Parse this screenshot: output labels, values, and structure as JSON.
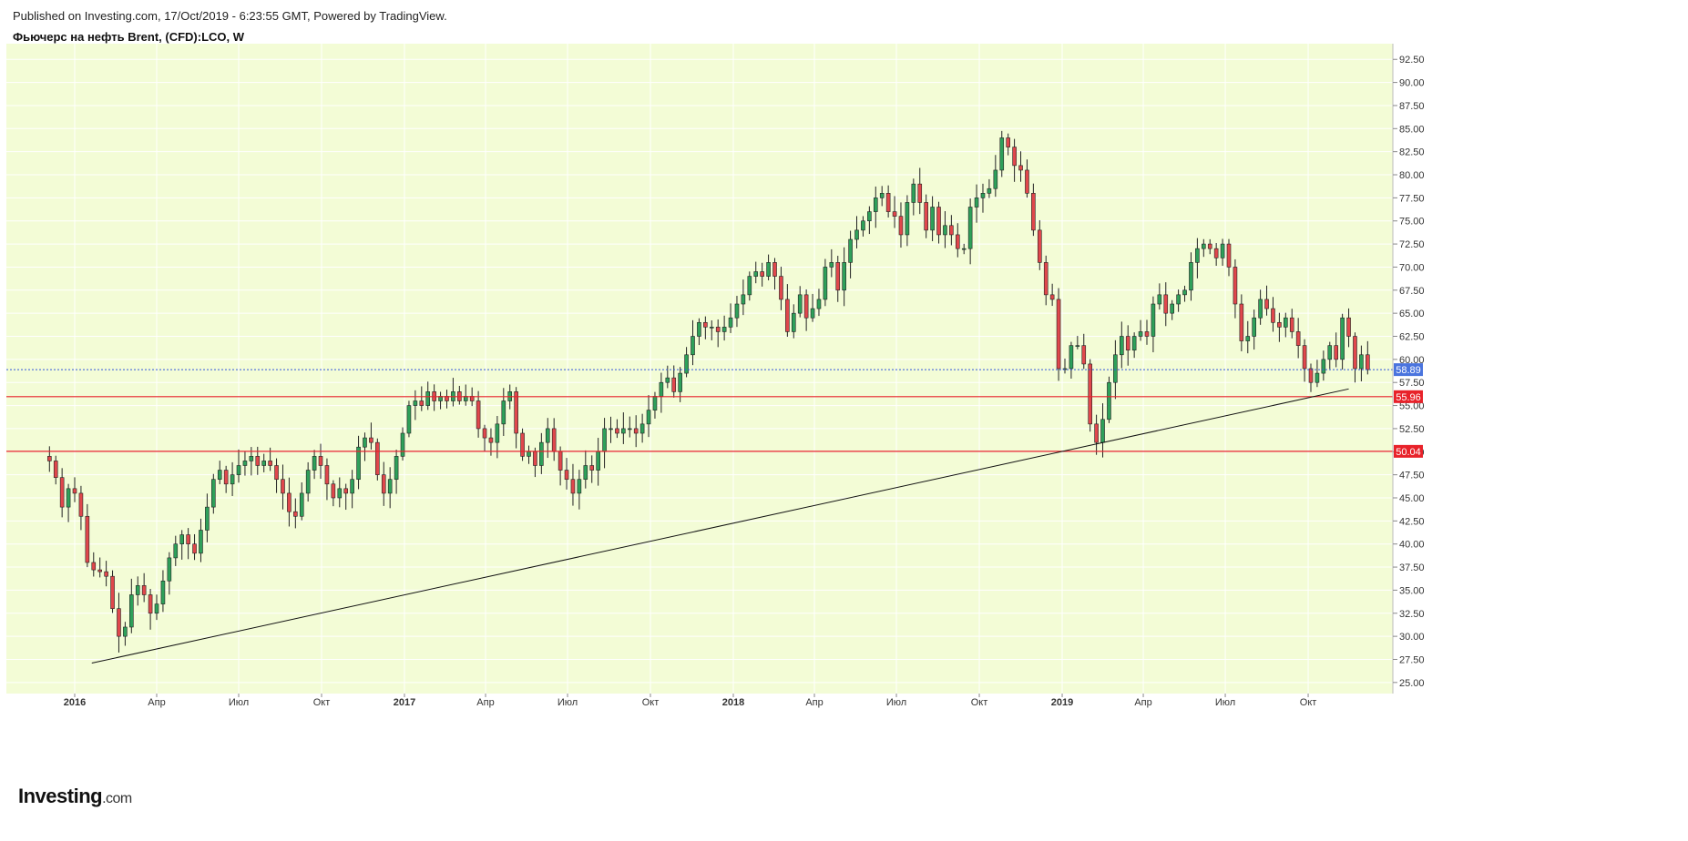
{
  "header": {
    "published": "Published on Investing.com, 17/Oct/2019 - 6:23:55 GMT, Powered by TradingView.",
    "title": "Фьючерс на нефть Brent, (CFD):LCO, W"
  },
  "logo": {
    "main": "Investing",
    "suffix": ".com"
  },
  "colors": {
    "background": "#f3fcd6",
    "up": "#2ea05a",
    "down": "#e0474c",
    "support": "#e8222a",
    "last_price_line": "#3355dd",
    "last_price_badge": "#4a74de",
    "trendline": "#111111"
  },
  "chart_data": {
    "type": "candlestick",
    "interval": "W",
    "ylim": [
      23.8,
      94.2
    ],
    "x_axis_labels": [
      "2016",
      "Апр",
      "Июл",
      "Окт",
      "2017",
      "Апр",
      "Июл",
      "Окт",
      "2018",
      "Апр",
      "Июл",
      "Окт",
      "2019",
      "Апр",
      "Июл",
      "Окт"
    ],
    "y_ticks": [
      25.0,
      27.5,
      30.0,
      32.5,
      35.0,
      37.5,
      40.0,
      42.5,
      45.0,
      47.5,
      50.0,
      52.5,
      55.0,
      57.5,
      60.0,
      62.5,
      65.0,
      67.5,
      70.0,
      72.5,
      75.0,
      77.5,
      80.0,
      82.5,
      85.0,
      87.5,
      90.0,
      92.5
    ],
    "last_price": 58.89,
    "support_levels": [
      55.96,
      50.04
    ],
    "trendline": {
      "from": {
        "date": "2016-01-20",
        "price": 27.1
      },
      "to": {
        "date": "2019-11-15",
        "price": 56.8
      }
    },
    "price_path_weekly_close": [
      49.0,
      47.2,
      44.0,
      46.0,
      45.5,
      43.0,
      38.0,
      37.2,
      37.0,
      36.5,
      33.0,
      30.0,
      31.0,
      34.5,
      35.5,
      34.5,
      32.5,
      33.5,
      36.0,
      38.5,
      40.0,
      41.0,
      40.0,
      39.0,
      41.5,
      44.0,
      47.0,
      48.0,
      46.5,
      47.5,
      48.5,
      49.0,
      49.5,
      48.5,
      49.0,
      48.5,
      47.0,
      45.5,
      43.5,
      43.0,
      45.5,
      48.0,
      49.5,
      48.5,
      46.5,
      45.0,
      46.0,
      45.5,
      47.0,
      50.5,
      51.5,
      51.0,
      47.5,
      45.5,
      47.0,
      49.5,
      52.0,
      55.0,
      55.5,
      55.0,
      56.5,
      55.5,
      56.0,
      55.5,
      56.5,
      55.5,
      56.0,
      55.5,
      52.5,
      51.5,
      51.0,
      53.0,
      55.5,
      56.5,
      52.0,
      49.5,
      50.0,
      48.5,
      51.0,
      52.5,
      50.0,
      48.0,
      47.0,
      45.5,
      47.0,
      48.5,
      48.0,
      50.0,
      52.5,
      52.5,
      52.0,
      52.5,
      52.5,
      52.0,
      53.0,
      54.5,
      56.0,
      57.5,
      58.0,
      56.5,
      58.5,
      60.5,
      62.5,
      64.0,
      63.5,
      63.5,
      63.0,
      63.5,
      64.5,
      66.0,
      67.0,
      69.0,
      69.5,
      69.0,
      70.5,
      69.0,
      66.5,
      63.0,
      65.0,
      67.0,
      64.5,
      65.5,
      66.5,
      70.0,
      70.5,
      67.5,
      70.5,
      73.0,
      74.0,
      75.0,
      76.0,
      77.5,
      78.0,
      76.0,
      75.5,
      73.5,
      77.0,
      79.0,
      77.0,
      74.0,
      76.5,
      73.5,
      74.5,
      73.5,
      72.0,
      72.0,
      76.5,
      77.5,
      78.0,
      78.5,
      80.5,
      84.0,
      83.0,
      81.0,
      80.5,
      78.0,
      74.0,
      70.5,
      67.0,
      66.5,
      59.0,
      59.0,
      61.5,
      61.5,
      59.5,
      53.0,
      51.0,
      53.5,
      57.5,
      60.5,
      62.5,
      61.0,
      62.5,
      63.0,
      62.5,
      66.0,
      67.0,
      65.0,
      66.0,
      67.0,
      67.5,
      70.5,
      72.0,
      72.5,
      72.0,
      71.0,
      72.5,
      70.0,
      66.0,
      62.0,
      62.5,
      64.5,
      66.5,
      65.5,
      64.0,
      63.5,
      64.5,
      63.0,
      61.5,
      59.0,
      57.5,
      58.5,
      60.0,
      61.5,
      60.0,
      64.5,
      62.5,
      59.0,
      60.5,
      58.89
    ]
  }
}
